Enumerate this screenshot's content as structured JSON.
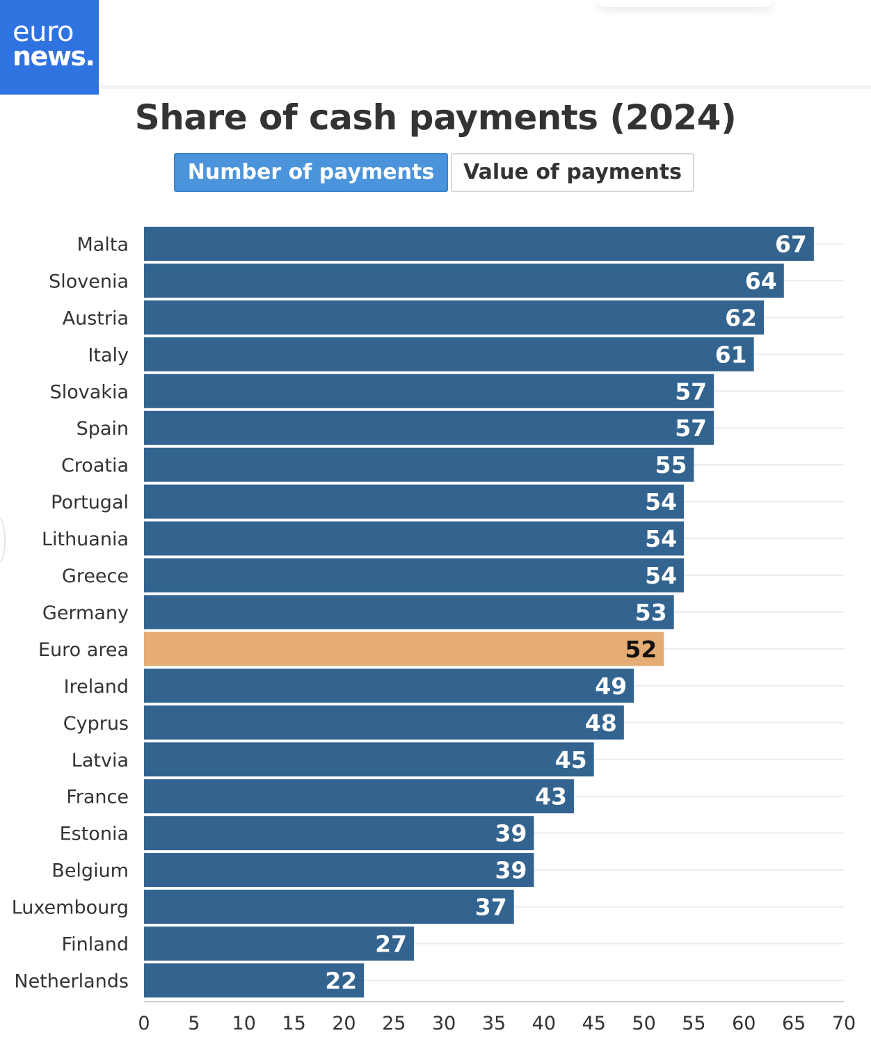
{
  "brand": {
    "line1": "euro",
    "line2": "news.",
    "color": "#2f73e0"
  },
  "title": "Share of cash payments (2024)",
  "tabs": [
    {
      "label": "Number of payments",
      "active": true
    },
    {
      "label": "Value of payments",
      "active": false
    }
  ],
  "colors": {
    "bar": "#336490",
    "highlight": "#e5ac74",
    "grid": "#ececec",
    "axis_text": "#333333"
  },
  "chart_data": {
    "type": "bar",
    "orientation": "horizontal",
    "categories": [
      "Malta",
      "Slovenia",
      "Austria",
      "Italy",
      "Slovakia",
      "Spain",
      "Croatia",
      "Portugal",
      "Lithuania",
      "Greece",
      "Germany",
      "Euro area",
      "Ireland",
      "Cyprus",
      "Latvia",
      "France",
      "Estonia",
      "Belgium",
      "Luxembourg",
      "Finland",
      "Netherlands"
    ],
    "values": [
      67,
      64,
      62,
      61,
      57,
      57,
      55,
      54,
      54,
      54,
      53,
      52,
      49,
      48,
      45,
      43,
      39,
      39,
      37,
      27,
      22
    ],
    "highlight_category": "Euro area",
    "xlim": [
      0,
      70
    ],
    "xticks": [
      0,
      5,
      10,
      15,
      20,
      25,
      30,
      35,
      40,
      45,
      50,
      55,
      60,
      65,
      70
    ],
    "grid": true,
    "data_labels": true
  }
}
